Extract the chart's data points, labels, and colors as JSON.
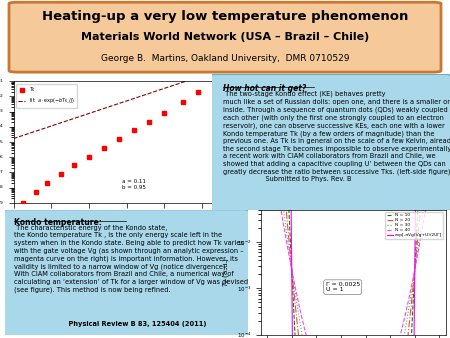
{
  "title_line1": "Heating-up a very low temperature phenomenon",
  "title_line2": "Materials World Network (USA – Brazil – Chile)",
  "title_line3": "George B.  Martins, Oakland University,  DMR 0710529",
  "title_bg_color": "#F5C99A",
  "title_border_color": "#C87830",
  "right_box_color": "#A8D8EA",
  "right_box_title": "How hot can it get?",
  "right_box_text_line1": " The two-stage Kondo effect (KE) behaves pretty",
  "right_box_text_rest": "much like a set of Russian dolls: open one, and there is a smaller one\ninside. Through a sequence of quantum dots (QDs) weakly coupled to\neach other (with only the first one strongly coupled to an electron\nreservoir), one can observe successive KEs, each one with a lower\nKondo temperature Tk (by a few orders of magnitude) than the\nprevious one. As Tk is in general on the scale of a few Kelvin, already\nthe second stage Tk becomes impossible to observe experimentally. In\na recent work with CIAM collaborators from Brazil and Chile, we\nshowed that adding a capacitive coupling U’ between the QDs can\ngreatly decrease the ratio between successive Tks. (left-side figure).\n                    Submitted to Phys. Rev. B",
  "left_box_color": "#A8D8EA",
  "left_box_title": "Kondo temperature:",
  "left_box_text": " The characteristic energy of the Kondo state,\nthe Kondo temperature Tk , is the only energy scale left in the\nsystem when in the Kondo state. Being able to predict how Tk varies\nwith the gate voltage Vg (as shown through an analytic expression –\nmagenta curve on the right) is important information. However, its\nvalidity is limited to a narrow window of Vg (notice divergence).\nWith CIAM collaborators from Brazil and Chile, a numerical way of\ncalculating an ‘extension’ of Tk for a larger window of Vg was devised\n(see figure). This method is now being refined.",
  "left_box_citation": "          Physical Review B 83, 125404 (2011)",
  "background_color": "#FFFFFF",
  "scatter_x": [
    0.05,
    0.12,
    0.18,
    0.25,
    0.32,
    0.4,
    0.48,
    0.56,
    0.64,
    0.72,
    0.8,
    0.9,
    0.98
  ],
  "scatter_y": [
    1e-09,
    5e-09,
    2e-08,
    8e-08,
    3e-07,
    1e-06,
    4e-06,
    1.5e-05,
    6e-05,
    0.0002,
    0.0008,
    0.004,
    0.02
  ],
  "kondo_colors": [
    "#008800",
    "#FF4444",
    "#44BB44",
    "#FF44FF"
  ],
  "kondo_labels": [
    "N = 10",
    "N = 20",
    "N = 30",
    "N = 40"
  ],
  "kondo_linestyles": [
    "--",
    "-.",
    ":",
    "--"
  ],
  "kondo_N_values": [
    10,
    20,
    30,
    40
  ],
  "kondo_analytic_label": "exp[-πVg(Vg+U)/2UΓ]",
  "kondo_Gamma": 0.0025,
  "kondo_U": 1.0,
  "kondo_annotation": "Γ = 0.0025\nU = 1"
}
